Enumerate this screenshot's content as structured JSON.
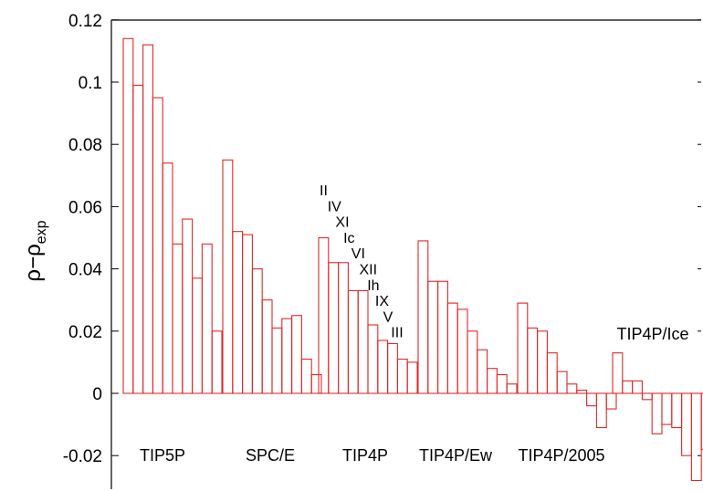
{
  "chart_data": {
    "type": "bar",
    "ylabel_main": "ρ−ρ",
    "ylabel_sub": "exp",
    "ylim": [
      -0.03,
      0.12
    ],
    "yticks": [
      -0.02,
      0,
      0.02,
      0.04,
      0.06,
      0.08,
      0.1,
      0.12
    ],
    "ytick_labels": [
      "-0.02",
      "0",
      "0.02",
      "0.04",
      "0.06",
      "0.08",
      "0.1",
      "0.12"
    ],
    "grid": false,
    "bar_color": "#e0282a",
    "phases": [
      "II",
      "IV",
      "XI",
      "Ic",
      "VI",
      "XII",
      "Ih",
      "IX",
      "V",
      "III"
    ],
    "groups": [
      {
        "name": "TIP5P",
        "values": [
          0.114,
          0.099,
          0.112,
          0.095,
          0.074,
          0.048,
          0.056,
          0.037,
          0.048,
          0.02
        ]
      },
      {
        "name": "SPC/E",
        "values": [
          0.075,
          0.052,
          0.051,
          0.04,
          0.03,
          0.021,
          0.024,
          0.025,
          0.011,
          0.006
        ]
      },
      {
        "name": "TIP4P",
        "values": [
          0.05,
          0.042,
          0.042,
          0.033,
          0.033,
          0.022,
          0.017,
          0.016,
          0.011,
          0.01
        ]
      },
      {
        "name": "TIP4P/Ew",
        "values": [
          0.049,
          0.036,
          0.036,
          0.029,
          0.027,
          0.02,
          0.014,
          0.008,
          0.006,
          0.003
        ]
      },
      {
        "name": "TIP4P/2005",
        "values": [
          0.029,
          0.021,
          0.02,
          0.013,
          0.007,
          0.003,
          0.001,
          -0.004,
          -0.011,
          -0.005
        ]
      },
      {
        "name": "TIP4P/Ice",
        "values": [
          0.013,
          0.004,
          0.004,
          -0.002,
          -0.013,
          -0.01,
          -0.011,
          -0.02,
          -0.028,
          -0.018
        ]
      }
    ]
  }
}
